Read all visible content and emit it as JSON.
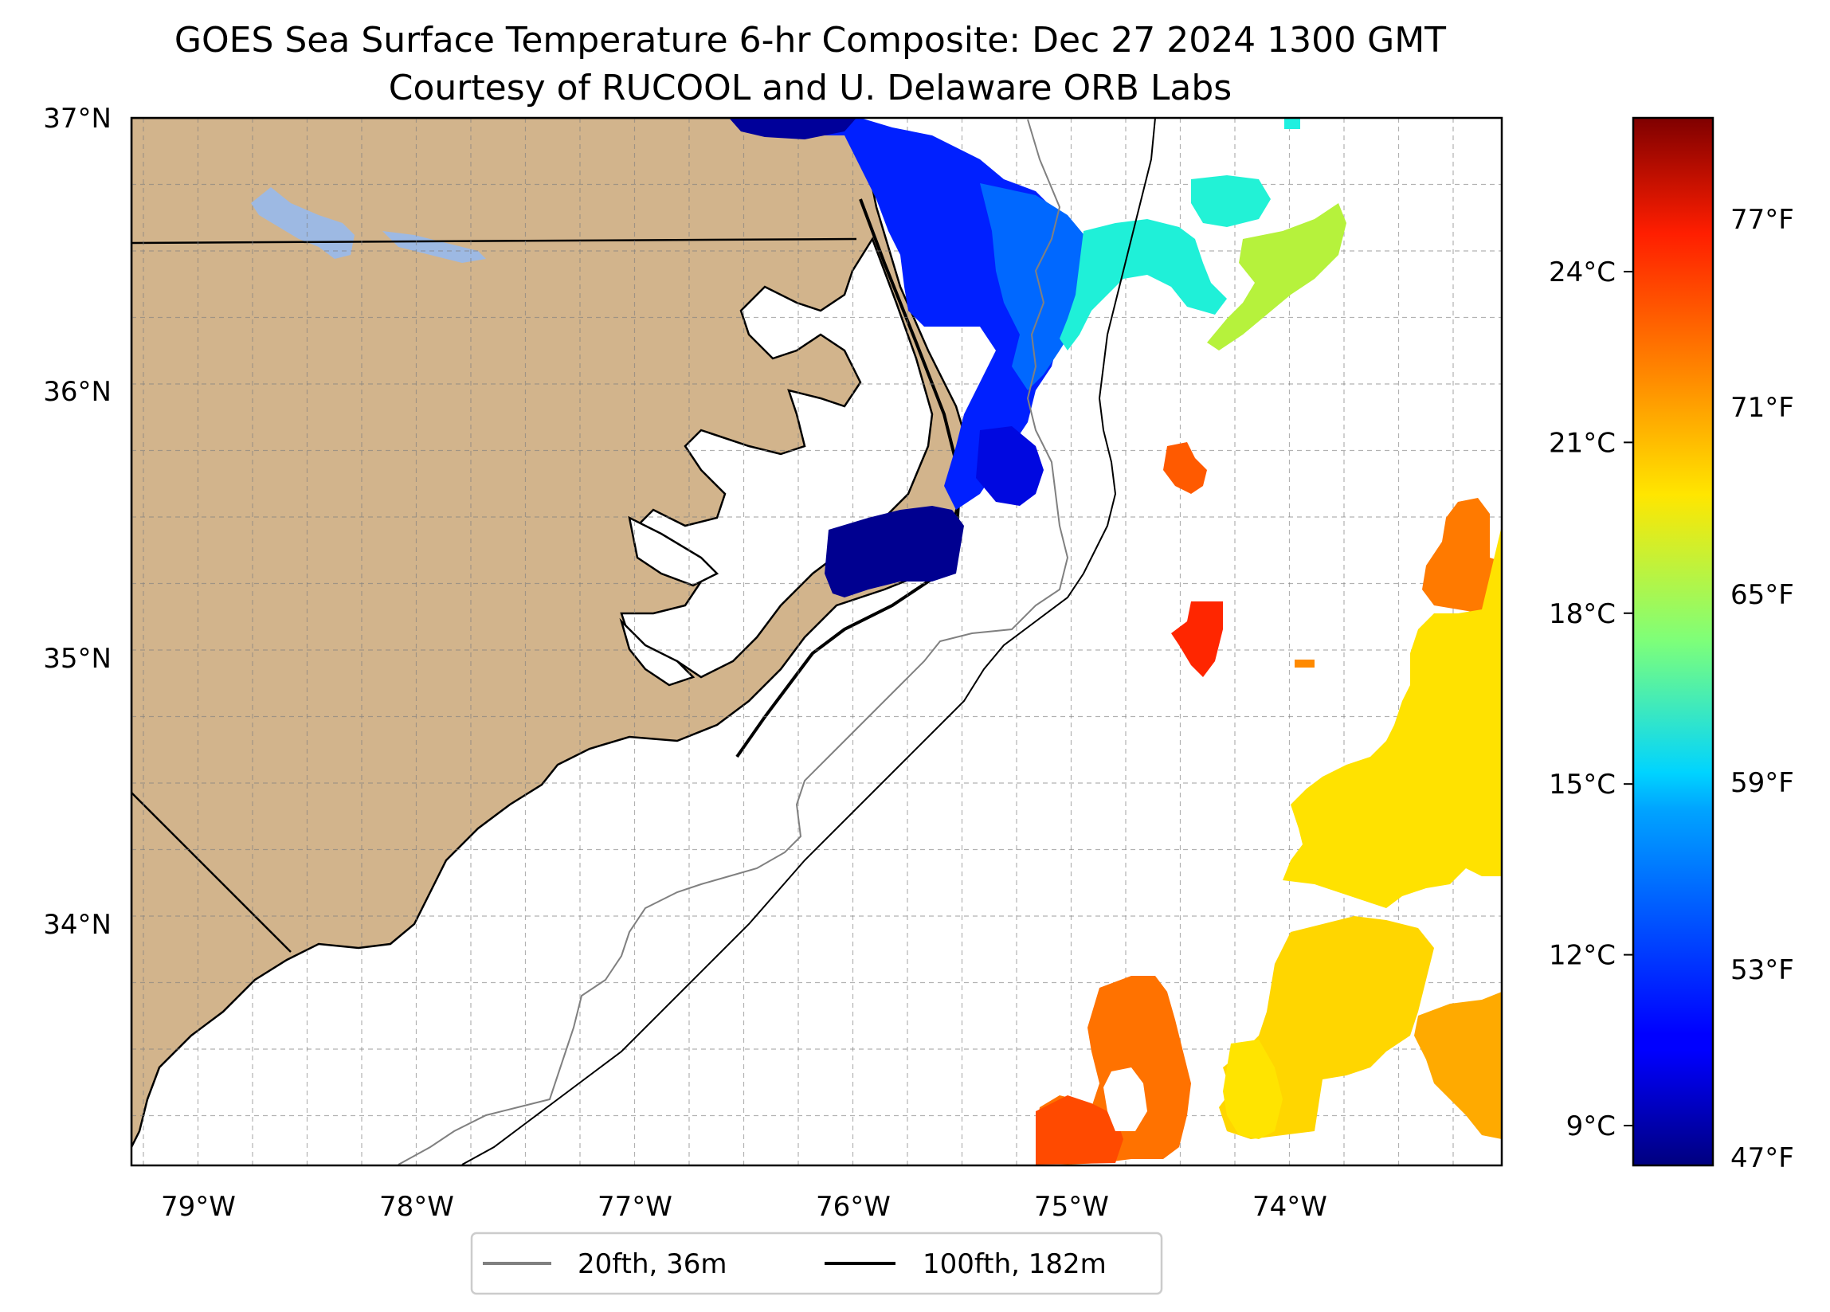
{
  "title": {
    "line1": "GOES Sea Surface Temperature 6-hr Composite: Dec 27 2024 1300 GMT",
    "line2": "Courtesy of RUCOOL and U. Delaware ORB Labs"
  },
  "map": {
    "lat_ticks": [
      "37°N",
      "36°N",
      "35°N",
      "34°N"
    ],
    "lon_ticks": [
      "79°W",
      "78°W",
      "77°W",
      "76°W",
      "75°W",
      "74°W"
    ],
    "extent": {
      "lon_min": -79.3,
      "lon_max": -73.02,
      "lat_min": 33.09,
      "lat_max": 37.0
    }
  },
  "legend": {
    "items": [
      {
        "label": "20fth, 36m",
        "color": "#808080"
      },
      {
        "label": "100fth, 182m",
        "color": "#000000"
      }
    ]
  },
  "colorbar": {
    "celsius_ticks": [
      "24°C",
      "21°C",
      "18°C",
      "15°C",
      "12°C",
      "9°C"
    ],
    "fahrenheit_ticks": [
      "77°F",
      "71°F",
      "65°F",
      "59°F",
      "53°F",
      "47°F"
    ],
    "celsius_values": [
      24,
      21,
      18,
      15,
      12,
      9
    ],
    "range_c": [
      8.3,
      26.7
    ],
    "colormap": "jet"
  },
  "colors": {
    "land": "#d2b48c",
    "lakes": "#9db9e3",
    "water": "#ffffff"
  }
}
